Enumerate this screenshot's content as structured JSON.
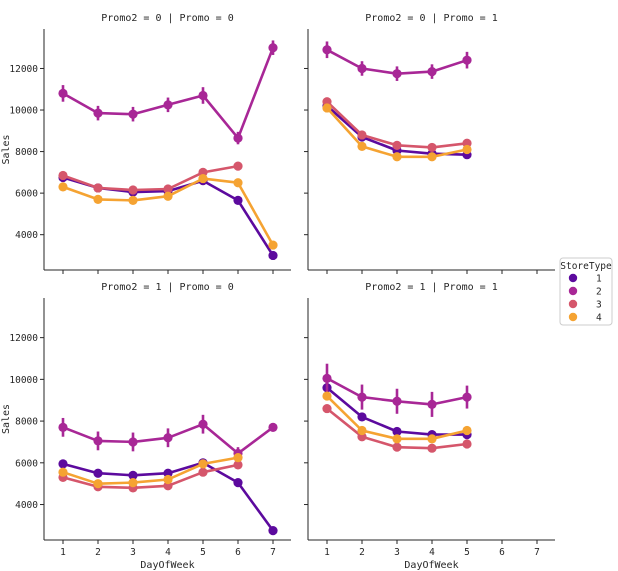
{
  "chart_data": {
    "type": "line",
    "y_axis_label": "Sales",
    "x_axis_label": "DayOfWeek",
    "x": [
      1,
      2,
      3,
      4,
      5,
      6,
      7
    ],
    "y_ticks": [
      4000,
      6000,
      8000,
      10000,
      12000
    ],
    "ylim": [
      2300,
      13900
    ],
    "legend": {
      "title": "StoreType",
      "entries": [
        {
          "name": "1",
          "color": "#5c0a9e"
        },
        {
          "name": "2",
          "color": "#a82796"
        },
        {
          "name": "3",
          "color": "#d5566b"
        },
        {
          "name": "4",
          "color": "#f5a332"
        }
      ]
    },
    "panels": [
      {
        "title": "Promo2 = 0 | Promo = 0",
        "series": [
          {
            "name": "1",
            "values": [
              6750,
              6250,
              6050,
              6100,
              6600,
              5650,
              3000
            ],
            "err": [
              150,
              100,
              100,
              100,
              150,
              150,
              150
            ]
          },
          {
            "name": "2",
            "values": [
              10800,
              9850,
              9800,
              10250,
              10700,
              8650,
              13000
            ],
            "err": [
              400,
              350,
              350,
              350,
              400,
              300,
              350
            ]
          },
          {
            "name": "3",
            "values": [
              6850,
              6250,
              6150,
              6200,
              7000,
              7300,
              null
            ],
            "err": [
              150,
              100,
              100,
              100,
              150,
              150,
              0
            ]
          },
          {
            "name": "4",
            "values": [
              6300,
              5700,
              5650,
              5850,
              6700,
              6500,
              3500
            ],
            "err": [
              150,
              100,
              100,
              100,
              150,
              150,
              150
            ]
          }
        ]
      },
      {
        "title": "Promo2 = 0 | Promo = 1",
        "series": [
          {
            "name": "1",
            "values": [
              10200,
              8700,
              8050,
              7900,
              7850,
              null,
              null
            ],
            "err": [
              200,
              150,
              150,
              150,
              150,
              0,
              0
            ]
          },
          {
            "name": "2",
            "values": [
              12900,
              12000,
              11750,
              11850,
              12400,
              null,
              null
            ],
            "err": [
              400,
              350,
              350,
              350,
              400,
              0,
              0
            ]
          },
          {
            "name": "3",
            "values": [
              10400,
              8800,
              8300,
              8200,
              8400,
              null,
              null
            ],
            "err": [
              200,
              150,
              150,
              150,
              150,
              0,
              0
            ]
          },
          {
            "name": "4",
            "values": [
              10100,
              8250,
              7750,
              7750,
              8100,
              null,
              null
            ],
            "err": [
              200,
              150,
              150,
              150,
              150,
              0,
              0
            ]
          }
        ]
      },
      {
        "title": "Promo2 = 1 | Promo = 0",
        "series": [
          {
            "name": "1",
            "values": [
              5950,
              5500,
              5400,
              5500,
              6000,
              5050,
              2750
            ],
            "err": [
              150,
              100,
              100,
              100,
              150,
              150,
              150
            ]
          },
          {
            "name": "2",
            "values": [
              7700,
              7050,
              7000,
              7200,
              7850,
              6450,
              7700
            ],
            "err": [
              450,
              450,
              450,
              450,
              450,
              300,
              200
            ]
          },
          {
            "name": "3",
            "values": [
              5300,
              4850,
              4800,
              4900,
              5550,
              5900,
              null
            ],
            "err": [
              150,
              100,
              100,
              100,
              150,
              150,
              0
            ]
          },
          {
            "name": "4",
            "values": [
              5550,
              5000,
              5050,
              5200,
              5950,
              6250,
              null
            ],
            "err": [
              150,
              100,
              100,
              100,
              150,
              150,
              0
            ]
          }
        ]
      },
      {
        "title": "Promo2 = 1 | Promo = 1",
        "series": [
          {
            "name": "1",
            "values": [
              9600,
              8200,
              7500,
              7350,
              7350,
              null,
              null
            ],
            "err": [
              400,
              200,
              150,
              150,
              150,
              0,
              0
            ]
          },
          {
            "name": "2",
            "values": [
              10050,
              9150,
              8950,
              8800,
              9150,
              null,
              null
            ],
            "err": [
              700,
              600,
              600,
              600,
              550,
              0,
              0
            ]
          },
          {
            "name": "3",
            "values": [
              8600,
              7250,
              6750,
              6700,
              6900,
              null,
              null
            ],
            "err": [
              150,
              150,
              150,
              150,
              150,
              0,
              0
            ]
          },
          {
            "name": "4",
            "values": [
              9200,
              7550,
              7150,
              7150,
              7550,
              null,
              null
            ],
            "err": [
              150,
              150,
              150,
              150,
              150,
              0,
              0
            ]
          }
        ]
      }
    ]
  }
}
